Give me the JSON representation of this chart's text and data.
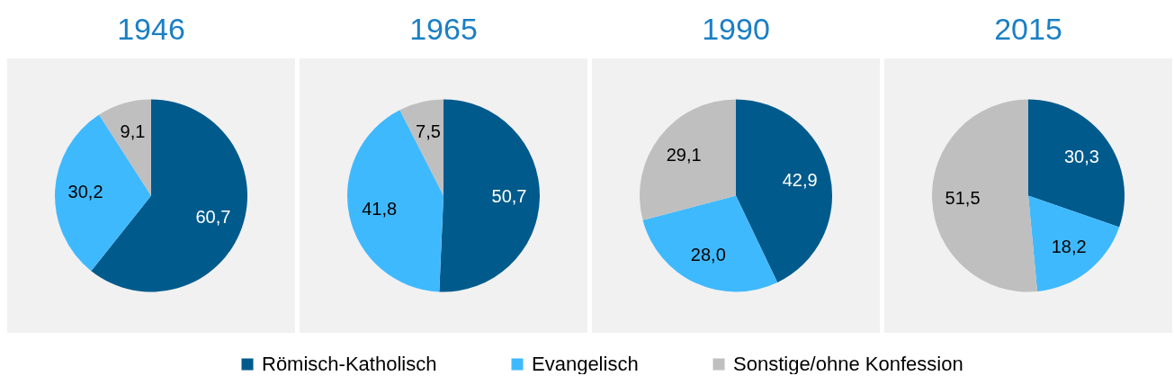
{
  "chart_data": {
    "type": "pie",
    "categories": [
      "Römisch-Katholisch",
      "Evangelisch",
      "Sonstige/ohne Konfession"
    ],
    "colors": [
      "#005a8c",
      "#3fb9fe",
      "#bfbfbf"
    ],
    "legend": "bottom",
    "series": [
      {
        "name": "1946",
        "values": [
          60.7,
          30.2,
          9.1
        ],
        "value_labels": [
          "60,7",
          "30,2",
          "9,1"
        ]
      },
      {
        "name": "1965",
        "values": [
          50.7,
          41.8,
          7.5
        ],
        "value_labels": [
          "50,7",
          "41,8",
          "7,5"
        ]
      },
      {
        "name": "1990",
        "values": [
          42.9,
          28.0,
          29.1
        ],
        "value_labels": [
          "42,9",
          "28,0",
          "29,1"
        ]
      },
      {
        "name": "2015",
        "values": [
          30.3,
          18.2,
          51.5
        ],
        "value_labels": [
          "30,3",
          "18,2",
          "51,5"
        ]
      }
    ]
  }
}
